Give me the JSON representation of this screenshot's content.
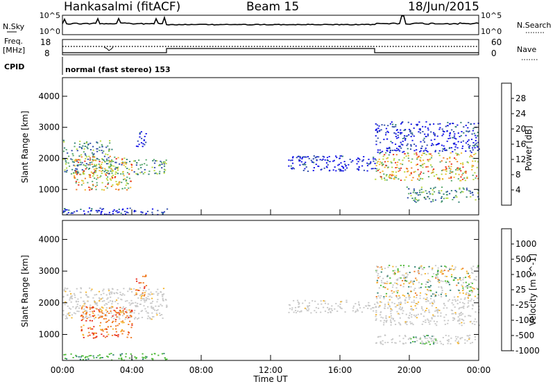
{
  "header": {
    "station": "Hankasalmi (fitACF)",
    "beam": "Beam 15",
    "date": "18/Jun/2015"
  },
  "top_panels": {
    "nsky_label": "N.Sky",
    "nsearch_label": "N.Search",
    "nsky_ticks": [
      "10^5",
      "10^0"
    ],
    "nsearch_ticks": [
      "10^5",
      "10^0"
    ],
    "freq_label": "Freq.",
    "freq_unit": "[MHz]",
    "freq_ticks": [
      "18",
      "8"
    ],
    "nave_label": "Nave",
    "nave_ticks": [
      "60",
      "0"
    ],
    "cpid_label": "CPID",
    "cpid_text": "normal (fast stereo) 153"
  },
  "chart_data": [
    {
      "type": "heatmap",
      "name": "power",
      "xlabel": "",
      "ylabel": "Slant Range [km]",
      "yticks": [
        "1000",
        "2000",
        "3000",
        "4000"
      ],
      "ylim": [
        180,
        4600
      ],
      "xlim": [
        0,
        24
      ],
      "colorbar_label": "Power [dB]",
      "colorbar_ticks": [
        "4",
        "8",
        "12",
        "16",
        "20",
        "24",
        "28"
      ],
      "colors": [
        "#1010e8",
        "#2c4aa8",
        "#2f7f72",
        "#57a86c",
        "#b8d83a",
        "#f5b52a",
        "#ef7a22",
        "#e82a1a"
      ],
      "regions": [
        {
          "t": [
            0.0,
            2.9
          ],
          "r": [
            1500,
            2600
          ],
          "level": "mid"
        },
        {
          "t": [
            0.6,
            4.0
          ],
          "r": [
            1000,
            2100
          ],
          "level": "high"
        },
        {
          "t": [
            2.5,
            6.0
          ],
          "r": [
            1500,
            2000
          ],
          "level": "mid"
        },
        {
          "t": [
            0.0,
            6.0
          ],
          "r": [
            200,
            420
          ],
          "level": "low"
        },
        {
          "t": [
            4.2,
            4.8
          ],
          "r": [
            2400,
            2900
          ],
          "level": "low"
        },
        {
          "t": [
            13.0,
            18.0
          ],
          "r": [
            1600,
            2100
          ],
          "level": "low"
        },
        {
          "t": [
            18.0,
            24.0
          ],
          "r": [
            1300,
            2200
          ],
          "level": "high"
        },
        {
          "t": [
            18.0,
            24.0
          ],
          "r": [
            2200,
            3200
          ],
          "level": "low"
        },
        {
          "t": [
            19.8,
            24.0
          ],
          "r": [
            600,
            1100
          ],
          "level": "mid"
        }
      ]
    },
    {
      "type": "heatmap",
      "name": "velocity",
      "xlabel": "Time UT",
      "ylabel": "Slant Range [km]",
      "yticks": [
        "1000",
        "2000",
        "3000",
        "4000"
      ],
      "xticks": [
        "00:00",
        "04:00",
        "08:00",
        "12:00",
        "16:00",
        "20:00",
        "00:00"
      ],
      "ylim": [
        180,
        4600
      ],
      "xlim": [
        0,
        24
      ],
      "colorbar_label": "Velocity [m s^-1]",
      "colorbar_ticks": [
        "1000",
        "500",
        "100",
        "25",
        "-25",
        "-100",
        "-500",
        "-1000"
      ],
      "colors": [
        "#1010e8",
        "#2c4aa8",
        "#2f7f72",
        "#4ab833",
        "#c8c8c8",
        "#f5b52a",
        "#ef7a22",
        "#e82a1a"
      ],
      "regions": [
        {
          "t": [
            0.0,
            6.0
          ],
          "r": [
            1500,
            2500
          ],
          "level": "ground"
        },
        {
          "t": [
            1.0,
            4.0
          ],
          "r": [
            900,
            1900
          ],
          "level": "neg_high"
        },
        {
          "t": [
            4.2,
            4.8
          ],
          "r": [
            2200,
            2900
          ],
          "level": "neg_high"
        },
        {
          "t": [
            0.0,
            6.0
          ],
          "r": [
            200,
            420
          ],
          "level": "pos_low"
        },
        {
          "t": [
            13.0,
            18.0
          ],
          "r": [
            1700,
            2100
          ],
          "level": "ground"
        },
        {
          "t": [
            18.0,
            24.0
          ],
          "r": [
            1300,
            2200
          ],
          "level": "ground"
        },
        {
          "t": [
            18.0,
            24.0
          ],
          "r": [
            2200,
            3200
          ],
          "level": "mixed"
        },
        {
          "t": [
            20.0,
            21.5
          ],
          "r": [
            700,
            1000
          ],
          "level": "pos_low"
        },
        {
          "t": [
            18.0,
            23.8
          ],
          "r": [
            700,
            1000
          ],
          "level": "ground"
        }
      ]
    }
  ]
}
